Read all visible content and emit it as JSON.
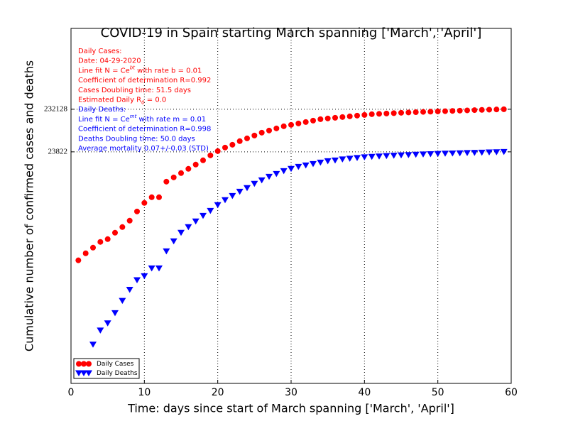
{
  "chart_data": {
    "type": "scatter",
    "title": "COVID-19 in Spain starting March spanning ['March', 'April']",
    "xlabel": "Time: days since start of March spanning ['March', 'April']",
    "ylabel": "Cumulative number of confirmed cases and deaths",
    "xlim": [
      0,
      60
    ],
    "xticks": [
      0,
      10,
      20,
      30,
      40,
      50,
      60
    ],
    "ylim": [
      0.1,
      17500000
    ],
    "yscale": "log",
    "yticks": [
      23822,
      232128
    ],
    "grid": true,
    "legend": "lower left",
    "annotations": [
      {
        "text": "Daily Cases:",
        "color": "#ff0000"
      },
      {
        "text": "Date: 04-29-2020",
        "color": "#ff0000"
      },
      {
        "text": "Line fit N = Ce^{bt} with rate b = 0.01",
        "color": "#ff0000"
      },
      {
        "text": "Coefficient of determination R=0.992",
        "color": "#ff0000"
      },
      {
        "text": "Cases Doubling time: 51.5 days",
        "color": "#ff0000"
      },
      {
        "text": "Estimated Daily R_{0} = 0.0",
        "color": "#ff0000"
      },
      {
        "text": "Daily Deaths:",
        "color": "#0000ff"
      },
      {
        "text": "Line fit N = Ce^{mt} with rate m = 0.01",
        "color": "#0000ff"
      },
      {
        "text": "Coefficient of determination R=0.998",
        "color": "#0000ff"
      },
      {
        "text": "Deaths Doubling time: 50.0 days",
        "color": "#0000ff"
      },
      {
        "text": "Average mortality 0.07+/-0.03 (STD)",
        "color": "#0000ff"
      }
    ],
    "series": [
      {
        "name": "Daily Cases",
        "color": "#ff0000",
        "marker": "o",
        "x": [
          1,
          2,
          3,
          4,
          5,
          6,
          7,
          8,
          9,
          10,
          11,
          12,
          13,
          14,
          15,
          16,
          17,
          18,
          19,
          20,
          21,
          22,
          23,
          24,
          25,
          26,
          27,
          28,
          29,
          30,
          31,
          32,
          33,
          34,
          35,
          36,
          37,
          38,
          39,
          40,
          41,
          42,
          43,
          44,
          45,
          46,
          47,
          48,
          49,
          50,
          51,
          52,
          53,
          54,
          55,
          56,
          57,
          58,
          59
        ],
        "values": [
          72,
          105,
          142,
          193,
          224,
          315,
          427,
          601,
          983,
          1552,
          2103,
          2103,
          4842,
          6081,
          7638,
          9594,
          12050,
          15136,
          19724,
          24767,
          29920,
          34830,
          42170,
          48980,
          57000,
          66370,
          74470,
          83370,
          93540,
          100900,
          108600,
          117200,
          126500,
          136400,
          141900,
          147200,
          153100,
          158900,
          165200,
          171400,
          178200,
          181500,
          184900,
          188400,
          192300,
          195500,
          198500,
          201500,
          204000,
          207000,
          209500,
          212500,
          215500,
          218500,
          221500,
          224500,
          227000,
          229500,
          232128
        ]
      },
      {
        "name": "Daily Deaths",
        "color": "#0000ff",
        "marker": "v",
        "x": [
          3,
          4,
          5,
          6,
          7,
          8,
          9,
          10,
          11,
          12,
          13,
          14,
          15,
          16,
          17,
          18,
          19,
          20,
          21,
          22,
          23,
          24,
          25,
          26,
          27,
          28,
          29,
          30,
          31,
          32,
          33,
          34,
          35,
          36,
          37,
          38,
          39,
          40,
          41,
          42,
          43,
          44,
          45,
          46,
          47,
          48,
          49,
          50,
          51,
          52,
          53,
          54,
          55,
          56,
          57,
          58,
          59
        ],
        "values": [
          0.8,
          1.7,
          2.5,
          4.3,
          8.3,
          15,
          25,
          31,
          47,
          47,
          117,
          200,
          316,
          427,
          578,
          783,
          1021,
          1384,
          1806,
          2265,
          2844,
          3443,
          4325,
          5224,
          6310,
          7345,
          8551,
          9594,
          10740,
          11590,
          12500,
          13490,
          14550,
          15100,
          16000,
          16600,
          17220,
          17870,
          18300,
          18700,
          19100,
          19500,
          19850,
          20200,
          20500,
          20800,
          21100,
          21400,
          21700,
          21950,
          22200,
          22450,
          22700,
          22950,
          23200,
          23500,
          23822
        ]
      }
    ]
  }
}
